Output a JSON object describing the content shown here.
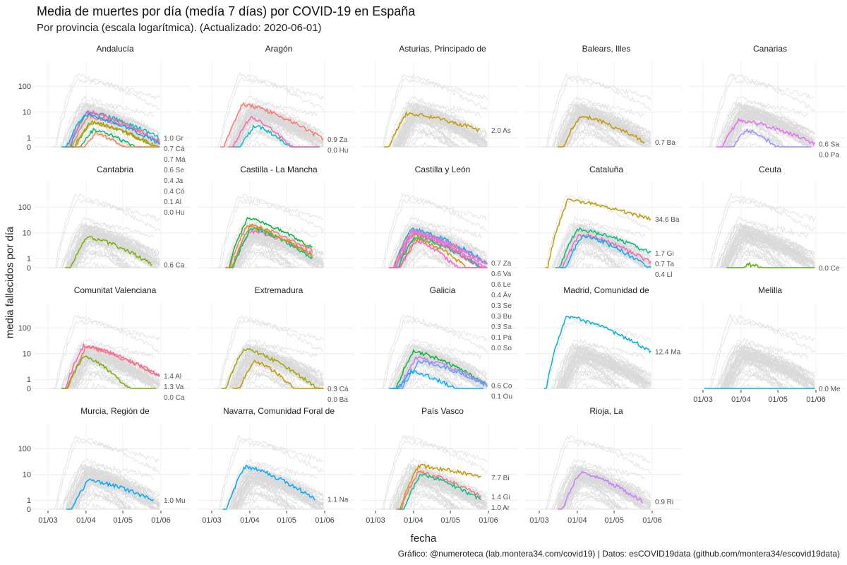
{
  "chart_data": {
    "type": "line",
    "title": "Media de muertes por día (medía 7 días) por COVID-19 en España",
    "subtitle": "Por provincia (escala logarítmica). (Actualizado: 2020-06-01)",
    "xlabel": "fecha",
    "ylabel": "media fallecidos por día",
    "caption": "Gráfico: @numeroteca (lab.montera34.com/covid19) | Datos: esCOVID19data (github.com/montera34/escovid19data)",
    "y_scale": "log",
    "y_ticks": [
      "0",
      "1",
      "10",
      "100"
    ],
    "x_ticks": [
      "01/03",
      "01/04",
      "01/05",
      "01/06"
    ],
    "x_tick_dates": [
      "2020-03-01",
      "2020-04-01",
      "2020-05-01",
      "2020-06-01"
    ],
    "grid": true,
    "panels": [
      {
        "name": "Andalucía",
        "labels": [
          "1.0 Gr",
          "0.7 Cá",
          "0.7 Má",
          "0.6 Se",
          "0.4 Ja",
          "0.4 Có",
          "0.1 Al",
          "0.0 Hu"
        ],
        "series": [
          {
            "color": "#00BFC4",
            "start": "2020-03-15",
            "end": "2020-05-31",
            "peak": 10,
            "end_value": 1.0
          },
          {
            "color": "#F8766D",
            "start": "2020-03-16",
            "end": "2020-05-31",
            "peak": 7,
            "end_value": 0.7
          },
          {
            "color": "#FF64B0",
            "start": "2020-03-14",
            "end": "2020-05-31",
            "peak": 10,
            "end_value": 0.7
          },
          {
            "color": "#00A9FF",
            "start": "2020-03-12",
            "end": "2020-05-31",
            "peak": 8,
            "end_value": 0.6
          },
          {
            "color": "#7CAE00",
            "start": "2020-03-17",
            "end": "2020-05-31",
            "peak": 4,
            "end_value": 0.4
          },
          {
            "color": "#C49A00",
            "start": "2020-03-18",
            "end": "2020-05-31",
            "peak": 4,
            "end_value": 0.4
          },
          {
            "color": "#00BE67",
            "start": "2020-03-20",
            "end": "2020-05-31",
            "peak": 2,
            "end_value": 0.1
          },
          {
            "color": "#FF7F50",
            "start": "2020-03-22",
            "end": "2020-05-31",
            "peak": 1.5,
            "end_value": 0.0
          }
        ]
      },
      {
        "name": "Aragón",
        "labels": [
          "0.9 Za",
          "0.0 Hu"
        ],
        "series": [
          {
            "color": "#F8766D",
            "start": "2020-03-08",
            "end": "2020-05-31",
            "peak": 20,
            "end_value": 0.9
          },
          {
            "color": "#00BFC4",
            "start": "2020-03-18",
            "end": "2020-05-28",
            "peak": 3,
            "end_value": 0.0
          },
          {
            "color": "#FF64B0",
            "start": "2020-03-14",
            "end": "2020-05-28",
            "peak": 6,
            "end_value": 0.0
          }
        ]
      },
      {
        "name": "Asturias, Principado de",
        "labels": [
          "2.0 As"
        ],
        "series": [
          {
            "color": "#C49A00",
            "start": "2020-03-08",
            "end": "2020-05-25",
            "peak": 9,
            "end_value": 2.0
          }
        ]
      },
      {
        "name": "Balears, Illes",
        "labels": [
          "0.7 Ba"
        ],
        "series": [
          {
            "color": "#C49A00",
            "start": "2020-03-16",
            "end": "2020-05-26",
            "peak": 7,
            "end_value": 0.7
          }
        ]
      },
      {
        "name": "Canarias",
        "labels": [
          "0.6 Sa",
          "0.0 Pa"
        ],
        "series": [
          {
            "color": "#E76BF3",
            "start": "2020-03-12",
            "end": "2020-05-31",
            "peak": 5,
            "end_value": 0.6
          },
          {
            "color": "#9590FF",
            "start": "2020-03-18",
            "end": "2020-05-28",
            "peak": 2,
            "end_value": 0.0
          }
        ]
      },
      {
        "name": "Cantabria",
        "labels": [
          "0.6 Ca"
        ],
        "series": [
          {
            "color": "#7CAE00",
            "start": "2020-03-15",
            "end": "2020-05-25",
            "peak": 7,
            "end_value": 0.6
          }
        ]
      },
      {
        "name": "Castilla - La Mancha",
        "labels": [],
        "series": [
          {
            "color": "#00BA38",
            "start": "2020-03-12",
            "end": "2020-05-22",
            "peak": 35,
            "end_value": 2.5
          },
          {
            "color": "#F8766D",
            "start": "2020-03-12",
            "end": "2020-05-22",
            "peak": 20,
            "end_value": 2.0
          },
          {
            "color": "#FF64B0",
            "start": "2020-03-14",
            "end": "2020-05-22",
            "peak": 12,
            "end_value": 1.5
          },
          {
            "color": "#00C08B",
            "start": "2020-03-15",
            "end": "2020-05-22",
            "peak": 15,
            "end_value": 1.0
          },
          {
            "color": "#B79F00",
            "start": "2020-03-14",
            "end": "2020-05-22",
            "peak": 18,
            "end_value": 1.2
          }
        ]
      },
      {
        "name": "Castilla y León",
        "labels": [
          "0.7 Za",
          "0.6 Va",
          "0.6 Le",
          "0.4 Áv",
          "0.3 Se",
          "0.3 Bu",
          "0.3 Sa",
          "0.1 Pa",
          "0.0 So"
        ],
        "series": [
          {
            "color": "#00A9FF",
            "start": "2020-03-12",
            "end": "2020-05-31",
            "peak": 14,
            "end_value": 0.7
          },
          {
            "color": "#F8766D",
            "start": "2020-03-12",
            "end": "2020-05-31",
            "peak": 12,
            "end_value": 0.6
          },
          {
            "color": "#C77CFF",
            "start": "2020-03-13",
            "end": "2020-05-31",
            "peak": 11,
            "end_value": 0.6
          },
          {
            "color": "#E76BF3",
            "start": "2020-03-14",
            "end": "2020-05-31",
            "peak": 10,
            "end_value": 0.4
          },
          {
            "color": "#7CAE00",
            "start": "2020-03-15",
            "end": "2020-05-31",
            "peak": 8,
            "end_value": 0.3
          },
          {
            "color": "#00BFC4",
            "start": "2020-03-15",
            "end": "2020-05-31",
            "peak": 7,
            "end_value": 0.3
          },
          {
            "color": "#FF64B0",
            "start": "2020-03-13",
            "end": "2020-05-31",
            "peak": 9,
            "end_value": 0.3
          },
          {
            "color": "#C49A00",
            "start": "2020-03-16",
            "end": "2020-05-31",
            "peak": 6,
            "end_value": 0.1
          },
          {
            "color": "#FF61C3",
            "start": "2020-03-16",
            "end": "2020-05-31",
            "peak": 5,
            "end_value": 0.0
          }
        ]
      },
      {
        "name": "Cataluña",
        "labels": [
          "34.6 Ba",
          "1.7 Gi",
          "0.7 Ta",
          "0.4 Ll"
        ],
        "series": [
          {
            "color": "#B79F00",
            "start": "2020-03-06",
            "end": "2020-05-31",
            "peak": 180,
            "end_value": 34.6
          },
          {
            "color": "#00BF7D",
            "start": "2020-03-14",
            "end": "2020-05-31",
            "peak": 14,
            "end_value": 1.7
          },
          {
            "color": "#FF64B0",
            "start": "2020-03-16",
            "end": "2020-05-31",
            "peak": 9,
            "end_value": 0.7
          },
          {
            "color": "#00B0F6",
            "start": "2020-03-18",
            "end": "2020-05-31",
            "peak": 8,
            "end_value": 0.4
          }
        ]
      },
      {
        "name": "Ceuta",
        "labels": [
          "0.0 Ce"
        ],
        "series": [
          {
            "color": "#53B400",
            "start": "2020-03-20",
            "end": "2020-05-31",
            "peak": 0.6,
            "end_value": 0.0
          }
        ]
      },
      {
        "name": "Comunitat Valenciana",
        "labels": [
          "1.4 Al",
          "1.3 Va",
          "0.0 Ca"
        ],
        "series": [
          {
            "color": "#FF64B0",
            "start": "2020-03-12",
            "end": "2020-05-31",
            "peak": 20,
            "end_value": 1.4
          },
          {
            "color": "#F8766D",
            "start": "2020-03-14",
            "end": "2020-05-31",
            "peak": 18,
            "end_value": 1.3
          },
          {
            "color": "#7CAE00",
            "start": "2020-03-12",
            "end": "2020-05-28",
            "peak": 8,
            "end_value": 0.0
          }
        ]
      },
      {
        "name": "Extremadura",
        "labels": [
          "0.3 Cá",
          "0.0 Ba"
        ],
        "series": [
          {
            "color": "#A3A500",
            "start": "2020-03-09",
            "end": "2020-05-31",
            "peak": 15,
            "end_value": 0.3
          },
          {
            "color": "#C49A00",
            "start": "2020-03-18",
            "end": "2020-05-31",
            "peak": 5,
            "end_value": 0.0
          }
        ]
      },
      {
        "name": "Galicia",
        "labels": [
          "0.6 Co",
          "0.1 Ou"
        ],
        "series": [
          {
            "color": "#00BA38",
            "start": "2020-03-14",
            "end": "2020-05-31",
            "peak": 12,
            "end_value": 0.6
          },
          {
            "color": "#C77CFF",
            "start": "2020-03-16",
            "end": "2020-05-31",
            "peak": 7,
            "end_value": 0.6
          },
          {
            "color": "#619CFF",
            "start": "2020-03-18",
            "end": "2020-05-31",
            "peak": 5,
            "end_value": 0.6
          },
          {
            "color": "#00B0F6",
            "start": "2020-03-12",
            "end": "2020-05-28",
            "peak": 2,
            "end_value": 0.1
          }
        ]
      },
      {
        "name": "Madrid, Comunidad de",
        "labels": [
          "12.4 Ma"
        ],
        "series": [
          {
            "color": "#00B4D8",
            "start": "2020-03-05",
            "end": "2020-05-31",
            "peak": 280,
            "end_value": 12.4
          }
        ]
      },
      {
        "name": "Melilla",
        "labels": [
          "0.0 Me"
        ],
        "series": [
          {
            "color": "#00B4D8",
            "start": "2020-03-02",
            "end": "2020-05-31",
            "peak": 0.3,
            "end_value": 0.0
          }
        ]
      },
      {
        "name": "Murcia, Región de",
        "labels": [
          "1.0 Mu"
        ],
        "series": [
          {
            "color": "#00A9FF",
            "start": "2020-03-16",
            "end": "2020-05-26",
            "peak": 6,
            "end_value": 1.0
          }
        ]
      },
      {
        "name": "Navarra, Comunidad Foral de",
        "labels": [
          "1.1 Na"
        ],
        "series": [
          {
            "color": "#00A9FF",
            "start": "2020-03-10",
            "end": "2020-05-24",
            "peak": 20,
            "end_value": 1.1
          }
        ]
      },
      {
        "name": "País Vasco",
        "labels": [
          "7.7 Bi",
          "1.4 Gi",
          "1.0 Ar"
        ],
        "series": [
          {
            "color": "#C49A00",
            "start": "2020-03-18",
            "end": "2020-05-26",
            "peak": 22,
            "end_value": 7.7
          },
          {
            "color": "#F8766D",
            "start": "2020-03-18",
            "end": "2020-05-26",
            "peak": 12,
            "end_value": 1.4
          },
          {
            "color": "#00C08B",
            "start": "2020-03-20",
            "end": "2020-05-26",
            "peak": 10,
            "end_value": 1.0
          }
        ]
      },
      {
        "name": "Rioja, La",
        "labels": [
          "0.9 Ri"
        ],
        "series": [
          {
            "color": "#C77CFF",
            "start": "2020-03-16",
            "end": "2020-05-24",
            "peak": 12,
            "end_value": 0.9
          }
        ]
      }
    ]
  }
}
